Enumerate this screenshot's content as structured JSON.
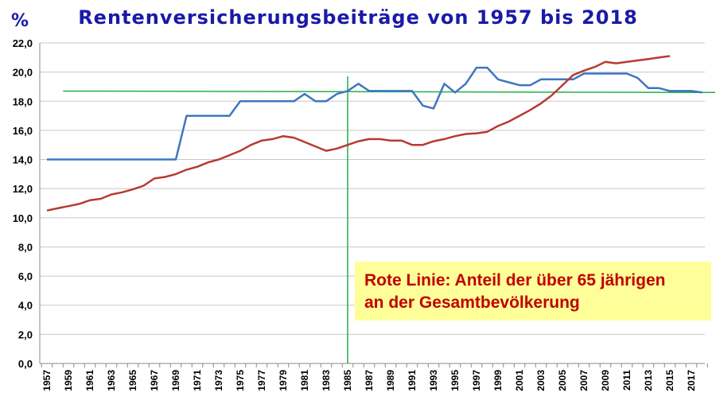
{
  "chart_data": {
    "type": "line",
    "title": "Rentenversicherungsbeiträge von 1957 bis 2018",
    "unit_label": "%",
    "ylim": [
      0,
      22
    ],
    "yticks": [
      "0,0",
      "2,0",
      "4,0",
      "6,0",
      "8,0",
      "10,0",
      "12,0",
      "14,0",
      "16,0",
      "18,0",
      "20,0",
      "22,0"
    ],
    "xlim": [
      1957,
      2018
    ],
    "xticks": [
      "1957",
      "1959",
      "1961",
      "1963",
      "1965",
      "1967",
      "1969",
      "1971",
      "1973",
      "1975",
      "1977",
      "1979",
      "1981",
      "1983",
      "1985",
      "1987",
      "1989",
      "1991",
      "1993",
      "1995",
      "1997",
      "1999",
      "2001",
      "2003",
      "2005",
      "2007",
      "2009",
      "2011",
      "2013",
      "2015",
      "2017"
    ],
    "grid": "horizontal",
    "series": [
      {
        "color": "#3e76c0",
        "x": [
          1957,
          1958,
          1959,
          1960,
          1961,
          1962,
          1963,
          1964,
          1965,
          1966,
          1967,
          1968,
          1969,
          1970,
          1971,
          1972,
          1973,
          1974,
          1975,
          1976,
          1977,
          1978,
          1979,
          1980,
          1981,
          1982,
          1983,
          1984,
          1985,
          1986,
          1987,
          1988,
          1989,
          1990,
          1991,
          1992,
          1993,
          1994,
          1995,
          1996,
          1997,
          1998,
          1999,
          2000,
          2001,
          2002,
          2003,
          2004,
          2005,
          2006,
          2007,
          2008,
          2009,
          2010,
          2011,
          2012,
          2013,
          2014,
          2015,
          2016,
          2017,
          2018
        ],
        "y": [
          14.0,
          14.0,
          14.0,
          14.0,
          14.0,
          14.0,
          14.0,
          14.0,
          14.0,
          14.0,
          14.0,
          14.0,
          14.0,
          17.0,
          17.0,
          17.0,
          17.0,
          17.0,
          18.0,
          18.0,
          18.0,
          18.0,
          18.0,
          18.0,
          18.5,
          18.0,
          18.0,
          18.5,
          18.7,
          19.2,
          18.7,
          18.7,
          18.7,
          18.7,
          18.7,
          17.7,
          17.5,
          19.2,
          18.6,
          19.2,
          20.3,
          20.3,
          19.5,
          19.3,
          19.1,
          19.1,
          19.5,
          19.5,
          19.5,
          19.5,
          19.9,
          19.9,
          19.9,
          19.9,
          19.9,
          19.6,
          18.9,
          18.9,
          18.7,
          18.7,
          18.7,
          18.6
        ]
      },
      {
        "color": "#b83a34",
        "x": [
          1957,
          1958,
          1959,
          1960,
          1961,
          1962,
          1963,
          1964,
          1965,
          1966,
          1967,
          1968,
          1969,
          1970,
          1971,
          1972,
          1973,
          1974,
          1975,
          1976,
          1977,
          1978,
          1979,
          1980,
          1981,
          1982,
          1983,
          1984,
          1985,
          1986,
          1987,
          1988,
          1989,
          1990,
          1991,
          1992,
          1993,
          1994,
          1995,
          1996,
          1997,
          1998,
          1999,
          2000,
          2001,
          2002,
          2003,
          2004,
          2005,
          2006,
          2007,
          2008,
          2009,
          2010,
          2011,
          2012,
          2013,
          2014,
          2015
        ],
        "y": [
          10.5,
          10.65,
          10.8,
          10.95,
          11.2,
          11.3,
          11.6,
          11.75,
          11.95,
          12.2,
          12.7,
          12.8,
          13.0,
          13.3,
          13.5,
          13.8,
          14.0,
          14.3,
          14.6,
          15.0,
          15.3,
          15.4,
          15.6,
          15.5,
          15.2,
          14.9,
          14.6,
          14.75,
          15.0,
          15.25,
          15.4,
          15.4,
          15.3,
          15.3,
          15.0,
          15.0,
          15.25,
          15.4,
          15.6,
          15.75,
          15.8,
          15.9,
          16.3,
          16.6,
          17.0,
          17.4,
          17.85,
          18.4,
          19.1,
          19.8,
          20.1,
          20.35,
          20.7,
          20.6,
          20.7,
          20.8,
          20.9,
          21.0,
          21.1
        ]
      }
    ],
    "reference_lines": [
      {
        "orientation": "vertical",
        "x": 1985,
        "color": "#22b04a"
      },
      {
        "orientation": "horizontal",
        "y": 18.7,
        "x_from": 1958.5,
        "y_end": 18.6,
        "x_to": 2019.5,
        "color": "#22b04a"
      }
    ],
    "annotation": {
      "line1": "Rote Linie: Anteil der über 65 jährigen",
      "line2": "an der Gesamtbevölkerung",
      "background": "#ffff99",
      "text_color": "#c00000"
    }
  }
}
